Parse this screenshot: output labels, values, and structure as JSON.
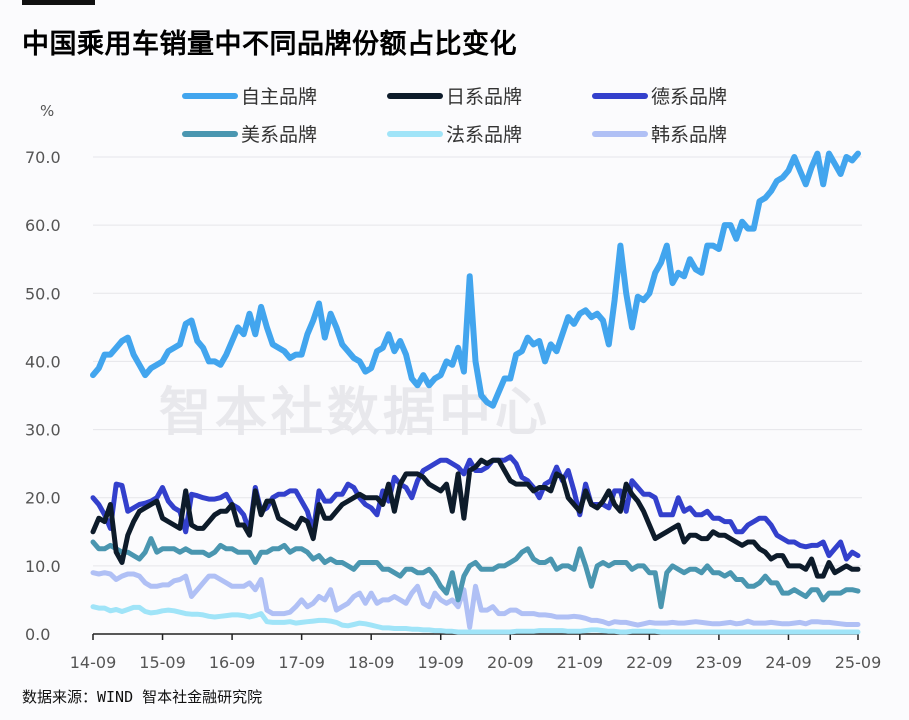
{
  "title": "中国乘用车销量中不同品牌份额占比变化",
  "source": "数据来源：WIND 智本社金融研究院",
  "watermark": "智本社数据中心",
  "chart_data": {
    "type": "line",
    "title": "中国乘用车销量中不同品牌份额占比变化",
    "ylabel": "%",
    "xlabel": "",
    "ylim": [
      0,
      70
    ],
    "yticks": [
      "0.0",
      "10.0",
      "20.0",
      "30.0",
      "40.0",
      "50.0",
      "60.0",
      "70.0"
    ],
    "xticks": [
      "14-09",
      "15-09",
      "16-09",
      "17-09",
      "18-09",
      "19-09",
      "20-09",
      "21-09",
      "22-09",
      "23-09",
      "24-09",
      "25-09"
    ],
    "grid": "horizontal",
    "legend_position": "top",
    "x": [
      "2014-09",
      "2014-10",
      "2014-11",
      "2014-12",
      "2015-01",
      "2015-02",
      "2015-03",
      "2015-04",
      "2015-05",
      "2015-06",
      "2015-07",
      "2015-08",
      "2015-09",
      "2015-10",
      "2015-11",
      "2015-12",
      "2016-01",
      "2016-02",
      "2016-03",
      "2016-04",
      "2016-05",
      "2016-06",
      "2016-07",
      "2016-08",
      "2016-09",
      "2016-10",
      "2016-11",
      "2016-12",
      "2017-01",
      "2017-02",
      "2017-03",
      "2017-04",
      "2017-05",
      "2017-06",
      "2017-07",
      "2017-08",
      "2017-09",
      "2017-10",
      "2017-11",
      "2017-12",
      "2018-01",
      "2018-02",
      "2018-03",
      "2018-04",
      "2018-05",
      "2018-06",
      "2018-07",
      "2018-08",
      "2018-09",
      "2018-10",
      "2018-11",
      "2018-12",
      "2019-01",
      "2019-02",
      "2019-03",
      "2019-04",
      "2019-05",
      "2019-06",
      "2019-07",
      "2019-08",
      "2019-09",
      "2019-10",
      "2019-11",
      "2019-12",
      "2020-01",
      "2020-02",
      "2020-03",
      "2020-04",
      "2020-05",
      "2020-06",
      "2020-07",
      "2020-08",
      "2020-09",
      "2020-10",
      "2020-11",
      "2020-12",
      "2021-01",
      "2021-02",
      "2021-03",
      "2021-04",
      "2021-05",
      "2021-06",
      "2021-07",
      "2021-08",
      "2021-09",
      "2021-10",
      "2021-11",
      "2021-12",
      "2022-01",
      "2022-02",
      "2022-03",
      "2022-04",
      "2022-05",
      "2022-06",
      "2022-07",
      "2022-08",
      "2022-09",
      "2022-10",
      "2022-11",
      "2022-12",
      "2023-01",
      "2023-02",
      "2023-03",
      "2023-04",
      "2023-05",
      "2023-06",
      "2023-07",
      "2023-08",
      "2023-09",
      "2023-10",
      "2023-11",
      "2023-12",
      "2024-01",
      "2024-02",
      "2024-03",
      "2024-04",
      "2024-05",
      "2024-06",
      "2024-07",
      "2024-08",
      "2024-09",
      "2024-10",
      "2024-11",
      "2024-12",
      "2025-01",
      "2025-02",
      "2025-03",
      "2025-04",
      "2025-05",
      "2025-06",
      "2025-07",
      "2025-08",
      "2025-09"
    ],
    "series": [
      {
        "name": "自主品牌",
        "color": "#42a5ee",
        "values": [
          38,
          39,
          41,
          41,
          42,
          43,
          43.5,
          41,
          39.5,
          38,
          39,
          39.5,
          40,
          41.5,
          42,
          42.5,
          45.5,
          46,
          43,
          42,
          40,
          40,
          39.5,
          41,
          43,
          45,
          44,
          47,
          44,
          48,
          45,
          42.5,
          42,
          41.5,
          40.5,
          41,
          41,
          44,
          46,
          48.5,
          43.5,
          47,
          45,
          42.5,
          41.5,
          40.5,
          40,
          38.5,
          39,
          41.5,
          42,
          44,
          41.5,
          43,
          41,
          37.5,
          36.5,
          38,
          36.5,
          37.5,
          38,
          40,
          39.5,
          42,
          38.5,
          52.5,
          40,
          35,
          34,
          33.5,
          35.5,
          37.5,
          37.5,
          41,
          41.5,
          43.5,
          42.5,
          43,
          40,
          42.5,
          41.5,
          44,
          46.5,
          45.5,
          47,
          47.5,
          46.5,
          47,
          46,
          42.5,
          49,
          57,
          50,
          45,
          49.5,
          49,
          50,
          53,
          54.5,
          57,
          51.5,
          53,
          52.5,
          55,
          53.5,
          53,
          57,
          57,
          56.5,
          60,
          60,
          58,
          60.5,
          59.5,
          59.5,
          63.5,
          64,
          65,
          66.5,
          67,
          68,
          70,
          68,
          66,
          68.5,
          70.5,
          66,
          70.5,
          69,
          67.5,
          70,
          69.5,
          70.5
        ]
      },
      {
        "name": "日系品牌",
        "color": "#0d1b2a",
        "values": [
          15,
          17,
          16.5,
          19,
          12,
          10.5,
          14.5,
          16.5,
          18,
          18.5,
          19,
          19.5,
          17,
          16.5,
          16,
          15.5,
          21,
          16,
          15.5,
          15.5,
          16.5,
          17.5,
          18,
          18,
          19,
          16,
          16,
          14.5,
          21,
          17.5,
          19.5,
          19.5,
          17,
          16.5,
          16,
          15.5,
          17,
          16.5,
          14,
          19,
          17,
          17,
          18,
          19,
          19.5,
          20,
          20.5,
          20,
          20,
          20,
          19,
          22,
          18,
          22,
          23.5,
          23.5,
          23.5,
          23,
          22,
          21.5,
          21,
          22,
          18,
          23.5,
          17,
          24,
          24.5,
          25.5,
          25,
          25.5,
          25.5,
          24,
          22.5,
          22,
          22,
          22,
          21,
          21.5,
          21.5,
          21,
          23.5,
          23,
          20,
          19,
          18,
          21,
          19,
          18.5,
          19.5,
          21,
          19,
          18,
          22,
          20.5,
          19.5,
          18,
          16,
          14,
          14.5,
          15,
          15.5,
          16,
          13.5,
          14.5,
          14.5,
          14,
          14,
          15,
          14.5,
          14.5,
          14,
          13.5,
          13,
          13.5,
          13.5,
          12.5,
          12,
          11,
          11.5,
          11.5,
          10,
          10,
          10,
          9.5,
          11,
          8.5,
          8.5,
          10.5,
          9,
          9.5,
          10,
          9.5,
          9.5
        ]
      },
      {
        "name": "德系品牌",
        "color": "#3340cc",
        "values": [
          20,
          19,
          17.5,
          15.5,
          22,
          21.8,
          18,
          18.5,
          19,
          19.2,
          19.5,
          20,
          21.5,
          19.5,
          18.5,
          18,
          15,
          20.5,
          20.3,
          20,
          19.8,
          19.8,
          20,
          20.5,
          19,
          18.5,
          17.5,
          15,
          21.5,
          18,
          18.5,
          20,
          20.5,
          20.5,
          21,
          21,
          19.5,
          18,
          15,
          21,
          19.5,
          19.5,
          20.5,
          20.5,
          22,
          21.5,
          20,
          19,
          18.5,
          17.5,
          21,
          19.5,
          23,
          22,
          21.5,
          20,
          22.5,
          24,
          24.5,
          25,
          25.5,
          25.5,
          25,
          24.5,
          23.5,
          25.5,
          24,
          24,
          24.5,
          25.5,
          25.5,
          25.5,
          26,
          25,
          23,
          22.5,
          21.5,
          20,
          22,
          22.5,
          24.5,
          22.5,
          24,
          21,
          17.5,
          22,
          19,
          19,
          19,
          18.5,
          21,
          21,
          18,
          22.5,
          21.5,
          20.5,
          20.5,
          20,
          17.5,
          17.5,
          17.5,
          20,
          18,
          18.5,
          17.5,
          17.5,
          18,
          17,
          17,
          16.5,
          16.5,
          15,
          15,
          16,
          16.5,
          17,
          17,
          16,
          14.5,
          14,
          13.5,
          13.5,
          13,
          12.8,
          13,
          13,
          13.5,
          11.5,
          12.5,
          13.5,
          11,
          12,
          11.5
        ]
      },
      {
        "name": "美系品牌",
        "color": "#4a96b0",
        "values": [
          13.5,
          12.5,
          12.5,
          13,
          12.5,
          12,
          12,
          11.5,
          11,
          12,
          14,
          12,
          12.5,
          12.5,
          12.5,
          12,
          12.5,
          12,
          12,
          12,
          11.5,
          12,
          13,
          12.5,
          12.5,
          12,
          12,
          12,
          10.5,
          12,
          12,
          12.5,
          12.5,
          13,
          12,
          12.5,
          12.5,
          12,
          11,
          11.5,
          10.5,
          11,
          10.5,
          10.5,
          10,
          9.5,
          10.5,
          10.5,
          10.5,
          10.5,
          9.5,
          9.5,
          9,
          8.5,
          9.5,
          9.5,
          9,
          9,
          9.5,
          8.5,
          7,
          6,
          9,
          5,
          8.5,
          10,
          10.5,
          9.5,
          9.5,
          9.5,
          10,
          10,
          10.5,
          11,
          12,
          12.5,
          11,
          10.5,
          10.5,
          11,
          9.5,
          10,
          10,
          9.5,
          12.5,
          10,
          7,
          10,
          10.5,
          10,
          10.5,
          10.5,
          10.5,
          9.5,
          10,
          10,
          9,
          9,
          4,
          9,
          10,
          9.5,
          9,
          9.5,
          9.5,
          9,
          10,
          9,
          9,
          8.5,
          9,
          8,
          8,
          7,
          7,
          7.5,
          8.5,
          7.5,
          7.5,
          6,
          6,
          6.5,
          6,
          5.5,
          6.5,
          6.5,
          5,
          6,
          6,
          6,
          6.5,
          6.5,
          6.3
        ]
      },
      {
        "name": "法系品牌",
        "color": "#a0e4f8",
        "values": [
          4,
          3.8,
          3.8,
          3.4,
          3.6,
          3.3,
          3.6,
          3.9,
          3.9,
          3.3,
          3.1,
          3.2,
          3.4,
          3.5,
          3.4,
          3.2,
          3,
          2.9,
          2.9,
          2.8,
          2.6,
          2.5,
          2.6,
          2.7,
          2.8,
          2.8,
          2.7,
          2.5,
          2.7,
          3,
          1.8,
          1.7,
          1.7,
          1.7,
          1.8,
          1.6,
          1.7,
          1.8,
          1.9,
          2,
          2,
          1.9,
          1.7,
          1.3,
          1.2,
          1.4,
          1.6,
          1.5,
          1.3,
          1.1,
          0.9,
          0.9,
          0.8,
          0.8,
          0.8,
          0.7,
          0.7,
          0.6,
          0.6,
          0.5,
          0.5,
          0.4,
          0.4,
          0.3,
          0.3,
          0.3,
          0.3,
          0.3,
          0.3,
          0.3,
          0.3,
          0.3,
          0.3,
          0.4,
          0.4,
          0.4,
          0.4,
          0.5,
          0.5,
          0.5,
          0.5,
          0.5,
          0.4,
          0.4,
          0.4,
          0.5,
          0.6,
          0.6,
          0.5,
          0.4,
          0.4,
          0.3,
          0.3,
          0.4,
          0.4,
          0.4,
          0.4,
          0.4,
          0.3,
          0.3,
          0.3,
          0.3,
          0.3,
          0.3,
          0.3,
          0.3,
          0.3,
          0.3,
          0.3,
          0.3,
          0.3,
          0.3,
          0.3,
          0.3,
          0.3,
          0.3,
          0.3,
          0.3,
          0.3,
          0.3,
          0.3,
          0.3,
          0.3,
          0.3,
          0.3,
          0.3,
          0.3,
          0.3,
          0.3,
          0.3,
          0.3,
          0.3,
          0.3
        ]
      },
      {
        "name": "韩系品牌",
        "color": "#b0c0f5",
        "values": [
          9,
          8.8,
          9,
          8.8,
          8,
          8.5,
          8.8,
          8.8,
          8.5,
          7.5,
          7,
          7,
          7.2,
          7.2,
          7.8,
          8,
          8.5,
          5.5,
          6.5,
          7.5,
          8.5,
          8.5,
          8,
          7.5,
          7,
          7,
          7,
          7.5,
          6.5,
          8,
          3.5,
          3,
          3,
          3,
          3.2,
          4,
          5,
          4,
          4.5,
          5.5,
          5,
          6.5,
          3.5,
          4,
          4.5,
          5.5,
          6,
          4.5,
          6,
          4.5,
          5,
          5,
          5.5,
          5,
          4.5,
          6,
          7,
          4.5,
          4,
          6,
          5,
          4.5,
          5,
          4,
          6.5,
          1,
          7,
          3.5,
          3.5,
          4,
          3,
          3,
          3.5,
          3.5,
          3,
          3,
          3,
          2.8,
          2.8,
          2.7,
          2.5,
          2.5,
          2.5,
          2.6,
          2.5,
          2.3,
          2,
          2,
          1.8,
          1.5,
          1.8,
          1.7,
          1.7,
          1.5,
          1.3,
          1.5,
          1.7,
          1.6,
          1.6,
          1.6,
          1.7,
          1.6,
          1.6,
          1.7,
          1.8,
          1.7,
          1.6,
          1.5,
          1.5,
          1.6,
          1.7,
          1.5,
          1.6,
          1.9,
          1.6,
          1.6,
          1.6,
          1.7,
          1.6,
          1.5,
          1.5,
          1.6,
          1.7,
          1.5,
          1.8,
          1.8,
          1.7,
          1.7,
          1.6,
          1.5,
          1.4,
          1.4,
          1.4
        ]
      }
    ]
  }
}
